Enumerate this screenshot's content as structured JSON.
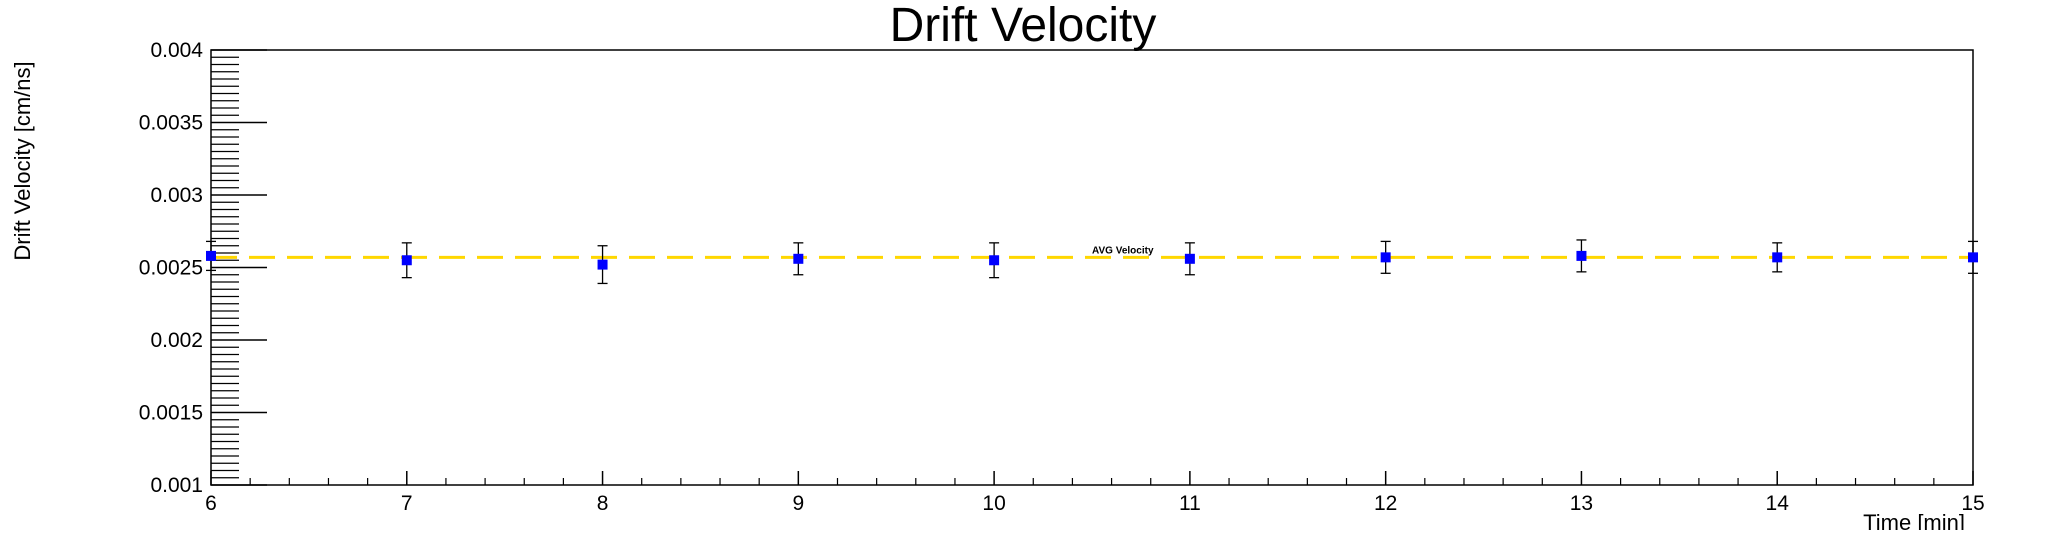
{
  "chart_data": {
    "type": "scatter",
    "title": "Drift Velocity",
    "xlabel": "Time [min]",
    "ylabel": "Drift Velocity [cm/ns]",
    "xlim": [
      6,
      15
    ],
    "ylim": [
      0.001,
      0.004
    ],
    "x_ticks": [
      "6",
      "7",
      "8",
      "9",
      "10",
      "11",
      "12",
      "13",
      "14",
      "15"
    ],
    "y_ticks": [
      "0.001",
      "0.0015",
      "0.002",
      "0.0025",
      "0.003",
      "0.0035",
      "0.004"
    ],
    "grid": false,
    "series": [
      {
        "marker": "square",
        "color": "#0000ff",
        "error_bar_color": "#000000",
        "x": [
          6,
          7,
          8,
          9,
          10,
          11,
          12,
          13,
          14,
          15
        ],
        "y": [
          0.00258,
          0.00255,
          0.00252,
          0.00256,
          0.00255,
          0.00256,
          0.00257,
          0.00258,
          0.00257,
          0.00257
        ],
        "y_err": [
          0.0001,
          0.00012,
          0.00013,
          0.00011,
          0.00012,
          0.00011,
          0.00011,
          0.00011,
          0.0001,
          0.00011
        ]
      }
    ],
    "reference_line": {
      "label": "AVG Velocity",
      "y": 0.00257,
      "color": "#ffd700",
      "style": "dashed"
    }
  }
}
